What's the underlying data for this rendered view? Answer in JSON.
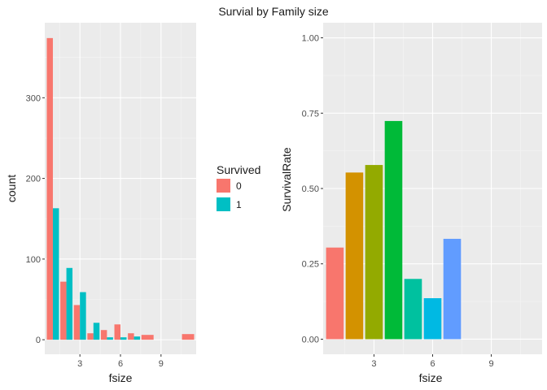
{
  "title": "Survial by Family size",
  "chart_data": [
    {
      "type": "bar",
      "position": "dodge",
      "xlabel": "fsize",
      "ylabel": "count",
      "x_ticks": [
        3,
        6,
        9
      ],
      "y_ticks": [
        0,
        100,
        200,
        300
      ],
      "xlim": [
        0.4,
        11.6
      ],
      "ylim": [
        -18,
        393
      ],
      "grid": true,
      "series": [
        {
          "name": "0",
          "color": "#F8766D",
          "x": [
            1,
            2,
            3,
            4,
            5,
            6,
            7,
            8,
            11
          ],
          "values": [
            374,
            72,
            43,
            8,
            12,
            19,
            8,
            6,
            7
          ]
        },
        {
          "name": "1",
          "color": "#00BFC4",
          "x": [
            1,
            2,
            3,
            4,
            5,
            6,
            7
          ],
          "values": [
            163,
            89,
            59,
            21,
            3,
            3,
            4
          ]
        }
      ],
      "legend": {
        "title": "Survived",
        "position": "right",
        "items": [
          {
            "label": "0",
            "color": "#F8766D"
          },
          {
            "label": "1",
            "color": "#00BFC4"
          }
        ]
      }
    },
    {
      "type": "bar",
      "xlabel": "fsize",
      "ylabel": "SurvivalRate",
      "x_ticks": [
        3,
        6,
        9
      ],
      "y_ticks": [
        0.0,
        0.25,
        0.5,
        0.75,
        1.0
      ],
      "y_tick_labels": [
        "0.00",
        "0.25",
        "0.50",
        "0.75",
        "1.00"
      ],
      "xlim": [
        0.4,
        11.6
      ],
      "ylim": [
        -0.05,
        1.05
      ],
      "grid": true,
      "x": [
        1,
        2,
        3,
        4,
        5,
        6,
        7,
        8,
        11
      ],
      "values": [
        0.304,
        0.553,
        0.578,
        0.724,
        0.2,
        0.136,
        0.333,
        0.0,
        0.0
      ],
      "colors": [
        "#F8766D",
        "#D39200",
        "#93AA00",
        "#00BA38",
        "#00C19F",
        "#00B9E3",
        "#619CFF",
        "#DB72FB",
        "#FF61C3"
      ]
    }
  ]
}
